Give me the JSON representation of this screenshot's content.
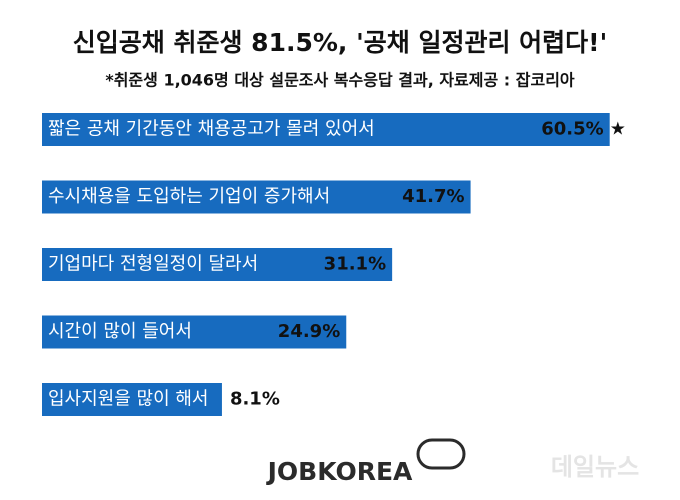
{
  "chart_data": {
    "type": "bar",
    "orientation": "horizontal",
    "title": "신입공채 취준생 81.5%, '공채 일정관리 어렵다!'",
    "subtitle": "*취준생 1,046명 대상 설문조사 복수응답 결과, 자료제공 : 잡코리아",
    "categories": [
      "짧은 공채 기간동안 채용공고가 몰려 있어서",
      "수시채용을 도입하는 기업이 증가해서",
      "기업마다 전형일정이 달라서",
      "시간이 많이 들어서",
      "입사지원을 많이 해서"
    ],
    "values": [
      60.5,
      41.7,
      31.1,
      24.9,
      8.1
    ],
    "value_labels": [
      "60.5%",
      "41.7%",
      "31.1%",
      "24.9%",
      "8.1%"
    ],
    "annotation": "★",
    "color": "#176bbf",
    "logo": "JOBKOREA",
    "watermark": "데일뉴스"
  }
}
